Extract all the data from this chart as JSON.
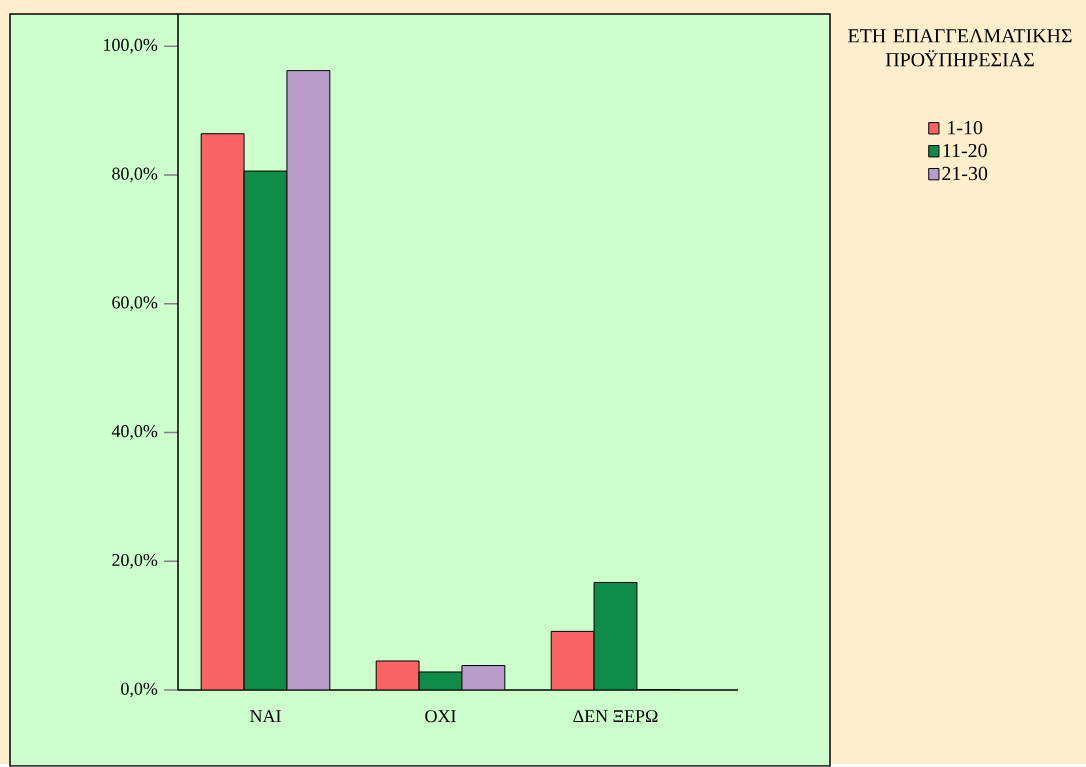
{
  "chart_data": {
    "type": "bar",
    "legend_title": "ΕΤΗ ΕΠΑΓΓΕΛΜΑΤΙΚΗΣ ΠΡΟΫΠΗΡΕΣΙΑΣ",
    "categories": [
      "ΝΑΙ",
      "ΟΧΙ",
      "ΔΕΝ ΞΕΡΩ"
    ],
    "series": [
      {
        "name": "1-10",
        "color": "#fa6464",
        "values": [
          86.4,
          4.5,
          9.1
        ]
      },
      {
        "name": "11-20",
        "color": "#0e8c48",
        "values": [
          80.6,
          2.8,
          16.7
        ]
      },
      {
        "name": "21-30",
        "color": "#b89dcb",
        "values": [
          96.2,
          3.8,
          0
        ]
      }
    ],
    "ylim": [
      0,
      105
    ],
    "yticks": [
      {
        "value": 0,
        "label": "0,0%"
      },
      {
        "value": 20,
        "label": "20,0%"
      },
      {
        "value": 40,
        "label": "40,0%"
      },
      {
        "value": 60,
        "label": "60,0%"
      },
      {
        "value": 80,
        "label": "80,0%"
      },
      {
        "value": 100,
        "label": "100,0%"
      }
    ],
    "grid": false,
    "legend": "right"
  }
}
